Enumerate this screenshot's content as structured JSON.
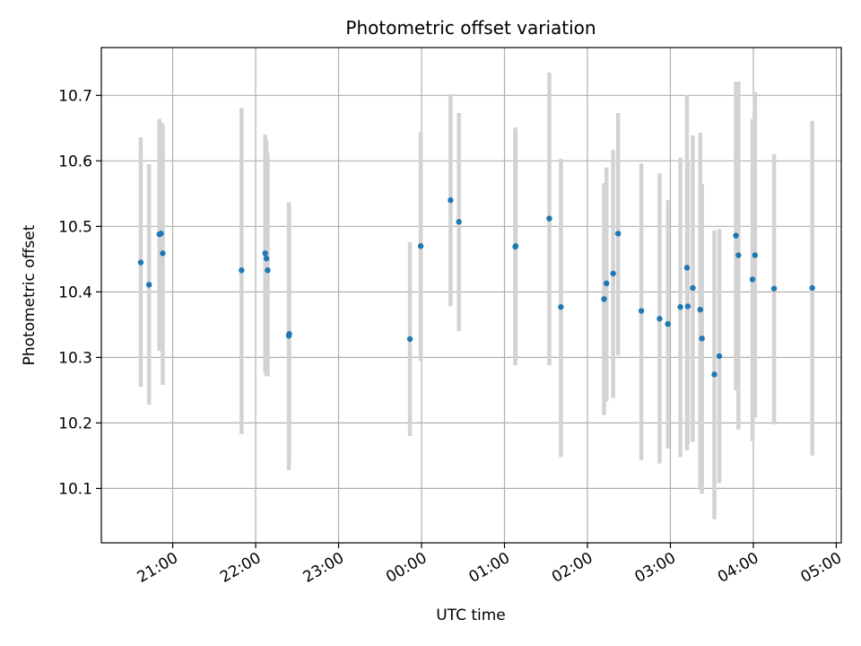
{
  "chart_data": {
    "type": "scatter",
    "title": "Photometric offset variation",
    "xlabel": "UTC time",
    "ylabel": "Photometric offset",
    "x_axis_kind": "time (hours since 20:00 UTC, labels HH:MM)",
    "xlim": [
      20.14,
      29.06
    ],
    "ylim": [
      10.017,
      10.773
    ],
    "grid": true,
    "x_ticks": [
      {
        "value": 21,
        "label": "21:00"
      },
      {
        "value": 22,
        "label": "22:00"
      },
      {
        "value": 23,
        "label": "23:00"
      },
      {
        "value": 24,
        "label": "00:00"
      },
      {
        "value": 25,
        "label": "01:00"
      },
      {
        "value": 26,
        "label": "02:00"
      },
      {
        "value": 27,
        "label": "03:00"
      },
      {
        "value": 28,
        "label": "04:00"
      },
      {
        "value": 29,
        "label": "05:00"
      }
    ],
    "y_ticks": [
      {
        "value": 10.1,
        "label": "10.1"
      },
      {
        "value": 10.2,
        "label": "10.2"
      },
      {
        "value": 10.3,
        "label": "10.3"
      },
      {
        "value": 10.4,
        "label": "10.4"
      },
      {
        "value": 10.5,
        "label": "10.5"
      },
      {
        "value": 10.6,
        "label": "10.6"
      },
      {
        "value": 10.7,
        "label": "10.7"
      }
    ],
    "colors": {
      "points": "#1f77b4",
      "errorbars": "#d3d3d3",
      "grid": "#b0b0b0"
    },
    "series": [
      {
        "x": [
          20.615,
          20.715,
          20.84,
          20.86,
          20.88,
          21.83,
          22.115,
          22.13,
          22.145,
          22.4,
          22.405,
          23.86,
          23.99,
          24.35,
          24.45,
          25.13,
          25.135,
          25.54,
          25.68,
          26.2,
          26.23,
          26.31,
          26.37,
          26.65,
          26.87,
          26.97,
          27.12,
          27.2,
          27.21,
          27.27,
          27.36,
          27.38,
          27.53,
          27.59,
          27.79,
          27.82,
          27.99,
          28.02,
          28.25,
          28.71
        ],
        "y": [
          10.445,
          10.411,
          10.488,
          10.489,
          10.459,
          10.433,
          10.459,
          10.451,
          10.433,
          10.333,
          10.336,
          10.328,
          10.47,
          10.54,
          10.507,
          10.469,
          10.47,
          10.512,
          10.377,
          10.389,
          10.413,
          10.428,
          10.489,
          10.371,
          10.359,
          10.351,
          10.377,
          10.437,
          10.378,
          10.406,
          10.373,
          10.329,
          10.274,
          10.302,
          10.486,
          10.456,
          10.419,
          10.456,
          10.405,
          10.406
        ],
        "y_low": [
          10.255,
          10.228,
          10.31,
          10.31,
          10.258,
          10.183,
          10.277,
          10.271,
          10.271,
          10.128,
          10.14,
          10.18,
          10.295,
          10.378,
          10.34,
          10.288,
          10.295,
          10.288,
          10.148,
          10.212,
          10.233,
          10.238,
          10.303,
          10.143,
          10.138,
          10.161,
          10.148,
          10.158,
          10.168,
          10.171,
          10.098,
          10.092,
          10.053,
          10.108,
          10.25,
          10.19,
          10.172,
          10.208,
          10.198,
          10.15
        ],
        "y_high": [
          10.636,
          10.595,
          10.664,
          10.659,
          10.656,
          10.681,
          10.64,
          10.631,
          10.612,
          10.537,
          10.531,
          10.476,
          10.644,
          10.702,
          10.673,
          10.651,
          10.645,
          10.735,
          10.603,
          10.566,
          10.59,
          10.617,
          10.673,
          10.596,
          10.581,
          10.54,
          10.605,
          10.701,
          10.6,
          10.639,
          10.643,
          10.565,
          10.494,
          10.496,
          10.721,
          10.721,
          10.664,
          10.705,
          10.61,
          10.661
        ]
      }
    ]
  }
}
